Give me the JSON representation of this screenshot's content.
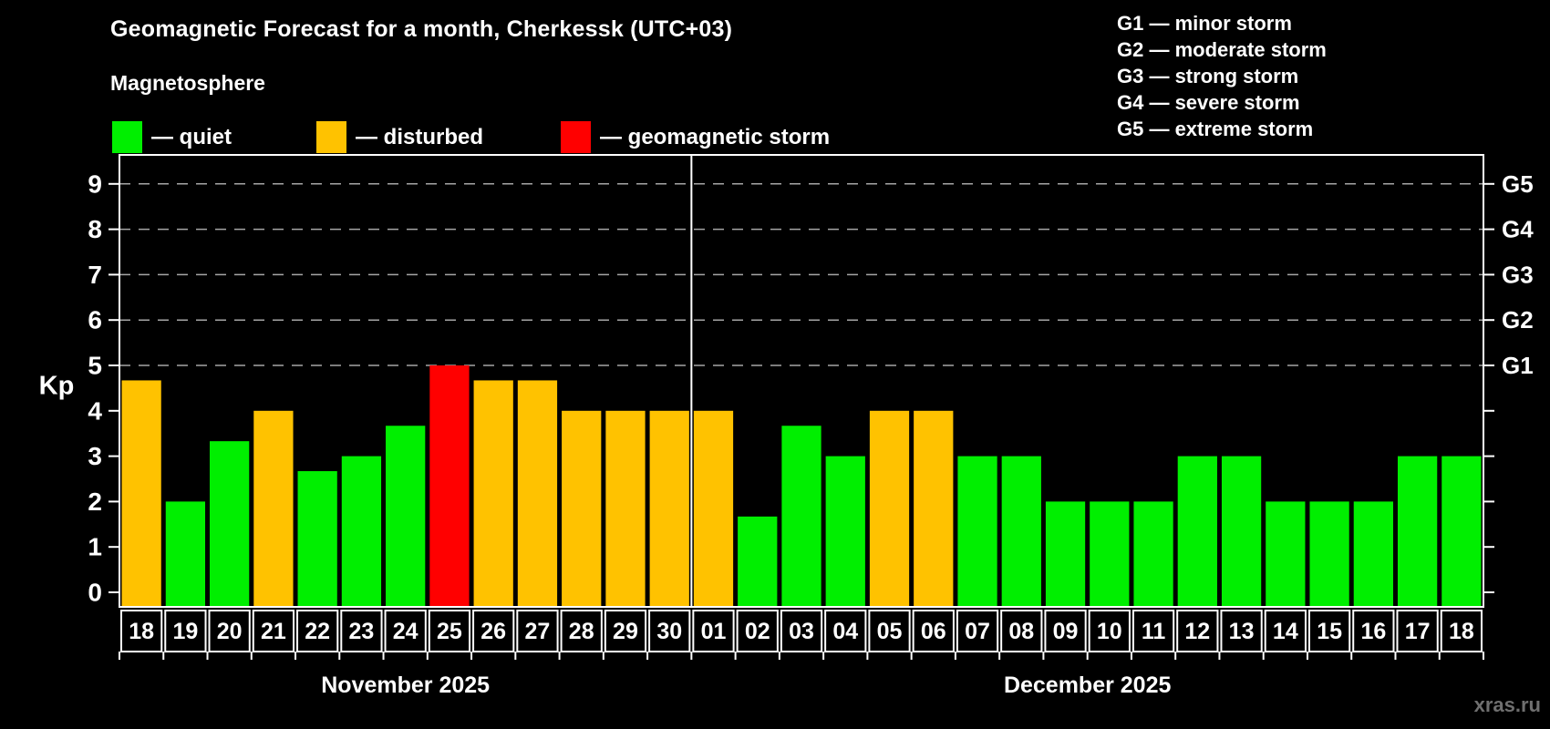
{
  "title": "Geomagnetic Forecast for a month, Cherkessk (UTC+03)",
  "subtitle": "Magnetosphere",
  "legend": {
    "items": [
      {
        "key": "quiet",
        "label": "— quiet",
        "color": "#00ef00"
      },
      {
        "key": "disturbed",
        "label": "— disturbed",
        "color": "#ffc200"
      },
      {
        "key": "storm",
        "label": "— geomagnetic storm",
        "color": "#ff0000"
      }
    ]
  },
  "g_legend": {
    "items": [
      "G1 — minor storm",
      "G2 — moderate storm",
      "G3 — strong storm",
      "G4 — severe storm",
      "G5 — extreme storm"
    ]
  },
  "watermark": "xras.ru",
  "chart_data": {
    "type": "bar",
    "ylabel": "Kp",
    "ylim": [
      0,
      9
    ],
    "y_ticks": [
      0,
      1,
      2,
      3,
      4,
      5,
      6,
      7,
      8,
      9
    ],
    "grid": "dashed horizontal lines at Kp 5-9 only (storm levels)",
    "legend_position": "top",
    "right_axis_labels": [
      {
        "kp": 5,
        "label": "G1"
      },
      {
        "kp": 6,
        "label": "G2"
      },
      {
        "kp": 7,
        "label": "G3"
      },
      {
        "kp": 8,
        "label": "G4"
      },
      {
        "kp": 9,
        "label": "G5"
      }
    ],
    "status_colors": {
      "quiet": "#00ef00",
      "disturbed": "#ffc200",
      "storm": "#ff0000"
    },
    "months": [
      {
        "label": "November 2025",
        "days": [
          {
            "day": "18",
            "kp": 4.67,
            "status": "disturbed"
          },
          {
            "day": "19",
            "kp": 2.0,
            "status": "quiet"
          },
          {
            "day": "20",
            "kp": 3.33,
            "status": "quiet"
          },
          {
            "day": "21",
            "kp": 4.0,
            "status": "disturbed"
          },
          {
            "day": "22",
            "kp": 2.67,
            "status": "quiet"
          },
          {
            "day": "23",
            "kp": 3.0,
            "status": "quiet"
          },
          {
            "day": "24",
            "kp": 3.67,
            "status": "quiet"
          },
          {
            "day": "25",
            "kp": 5.0,
            "status": "storm"
          },
          {
            "day": "26",
            "kp": 4.67,
            "status": "disturbed"
          },
          {
            "day": "27",
            "kp": 4.67,
            "status": "disturbed"
          },
          {
            "day": "28",
            "kp": 4.0,
            "status": "disturbed"
          },
          {
            "day": "29",
            "kp": 4.0,
            "status": "disturbed"
          },
          {
            "day": "30",
            "kp": 4.0,
            "status": "disturbed"
          }
        ]
      },
      {
        "label": "December 2025",
        "days": [
          {
            "day": "01",
            "kp": 4.0,
            "status": "disturbed"
          },
          {
            "day": "02",
            "kp": 1.67,
            "status": "quiet"
          },
          {
            "day": "03",
            "kp": 3.67,
            "status": "quiet"
          },
          {
            "day": "04",
            "kp": 3.0,
            "status": "quiet"
          },
          {
            "day": "05",
            "kp": 4.0,
            "status": "disturbed"
          },
          {
            "day": "06",
            "kp": 4.0,
            "status": "disturbed"
          },
          {
            "day": "07",
            "kp": 3.0,
            "status": "quiet"
          },
          {
            "day": "08",
            "kp": 3.0,
            "status": "quiet"
          },
          {
            "day": "09",
            "kp": 2.0,
            "status": "quiet"
          },
          {
            "day": "10",
            "kp": 2.0,
            "status": "quiet"
          },
          {
            "day": "11",
            "kp": 2.0,
            "status": "quiet"
          },
          {
            "day": "12",
            "kp": 3.0,
            "status": "quiet"
          },
          {
            "day": "13",
            "kp": 3.0,
            "status": "quiet"
          },
          {
            "day": "14",
            "kp": 2.0,
            "status": "quiet"
          },
          {
            "day": "15",
            "kp": 2.0,
            "status": "quiet"
          },
          {
            "day": "16",
            "kp": 2.0,
            "status": "quiet"
          },
          {
            "day": "17",
            "kp": 3.0,
            "status": "quiet"
          },
          {
            "day": "18",
            "kp": 3.0,
            "status": "quiet"
          }
        ]
      }
    ]
  }
}
